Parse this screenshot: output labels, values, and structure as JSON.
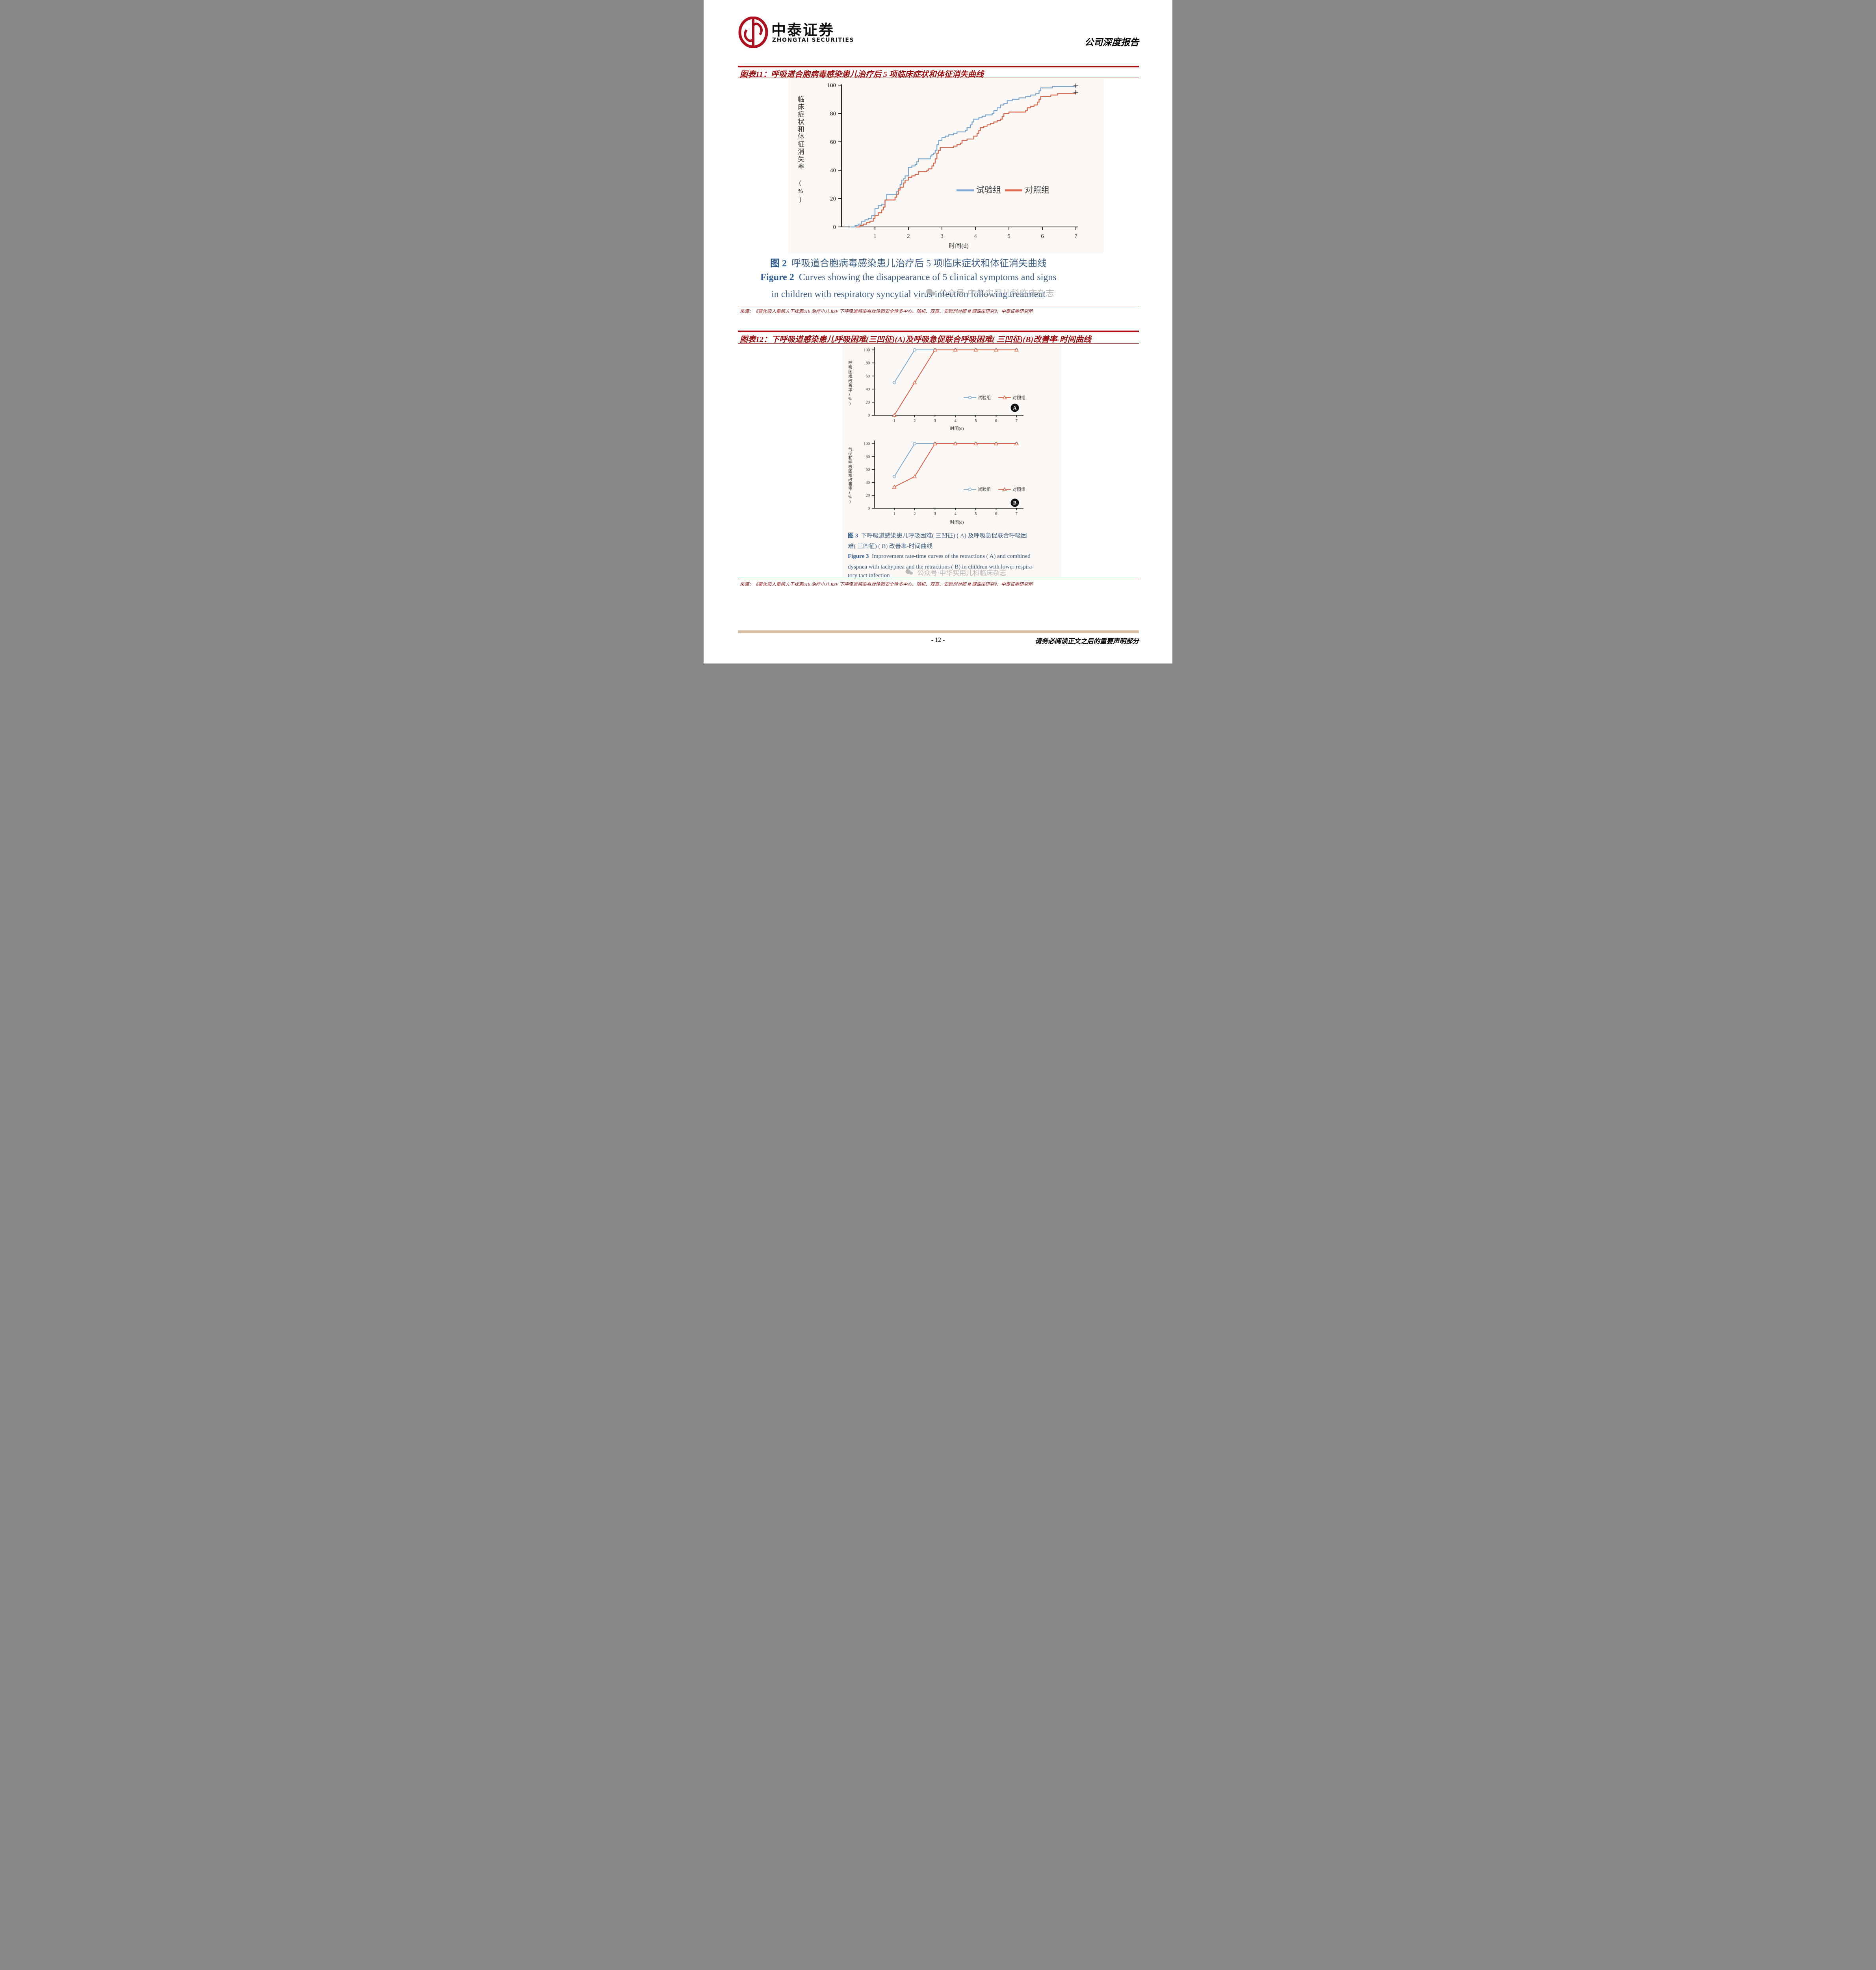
{
  "header": {
    "brand_cn": "中泰证券",
    "brand_en": "ZHONGTAI SECURITIES",
    "report_type": "公司深度报告"
  },
  "figure11": {
    "title": "图表11：呼吸道合胞病毒感染患儿治疗后 5 项临床症状和体征消失曲线",
    "caption_cn_label": "图 2",
    "caption_cn_text": "呼吸道合胞病毒感染患儿治疗后 5 项临床症状和体征消失曲线",
    "caption_en_label": "Figure 2",
    "caption_en_text": "Curves showing the disappearance of 5 clinical symptoms and signs",
    "caption_en_line2": "in children with respiratory syncytial virus infection following treatment",
    "source": "来源：《雾化吸入重组人干扰素α1b 治疗小儿 RSV 下呼吸道感染有效性和安全性多中心、随机、双盲、安慰剂对照 Ⅲ 期临床研究》，中泰证券研究所"
  },
  "figure12": {
    "title": "图表12：下呼吸道感染患儿呼吸困难(三凹征)(A)及呼吸急促联合呼吸困难( 三凹征)(B)改善率-时间曲线",
    "caption_cn_label": "图 3",
    "caption_cn_text": "下呼吸道感染患儿呼吸困难( 三凹征) ( A) 及呼吸急促联合呼吸困",
    "caption_cn_line2": "难( 三凹征) ( B) 改善率-时间曲线",
    "caption_en_label": "Figure 3",
    "caption_en_text": "Improvement rate-time curves of the retractions ( A) and combined",
    "caption_en_line2": "dyspnea with tachypnea and the retractions ( B) in children with lower respira-",
    "caption_en_line3": "tory tact infection",
    "source": "来源：《雾化吸入重组人干扰素α1b 治疗小儿 RSV 下呼吸道感染有效性和安全性多中心、随机、双盲、安慰剂对照 Ⅲ 期临床研究》，中泰证券研究所"
  },
  "watermark": {
    "text": "公众号·中华实用儿科临床杂志"
  },
  "footer": {
    "page_number": "- 12 -",
    "disclaimer": "请务必阅读正文之后的重要声明部分"
  },
  "chart_data": [
    {
      "id": "figure2",
      "type": "line",
      "subtype": "step-survival",
      "xlabel": "时间(d)",
      "ylabel": "临床症状和体征消失率 (%)",
      "xlim": [
        0,
        7
      ],
      "ylim": [
        0,
        100
      ],
      "xticks": [
        1,
        2,
        3,
        4,
        5,
        6,
        7
      ],
      "yticks": [
        0,
        20,
        40,
        60,
        80,
        100
      ],
      "grid": false,
      "legend_position": "inside-right-lower",
      "censor_marker": "+",
      "series": [
        {
          "name": "试验组",
          "color": "#7fa9cf",
          "points": [
            [
              0.25,
              0
            ],
            [
              0.4,
              1
            ],
            [
              0.5,
              2
            ],
            [
              0.6,
              4
            ],
            [
              0.7,
              5
            ],
            [
              0.8,
              6
            ],
            [
              0.9,
              8
            ],
            [
              1.0,
              13
            ],
            [
              1.1,
              15
            ],
            [
              1.2,
              16
            ],
            [
              1.3,
              19
            ],
            [
              1.35,
              23
            ],
            [
              1.55,
              23
            ],
            [
              1.65,
              25
            ],
            [
              1.7,
              27
            ],
            [
              1.75,
              30
            ],
            [
              1.8,
              33
            ],
            [
              1.85,
              34
            ],
            [
              1.9,
              36
            ],
            [
              2.0,
              42
            ],
            [
              2.1,
              43
            ],
            [
              2.2,
              44
            ],
            [
              2.25,
              46
            ],
            [
              2.3,
              48
            ],
            [
              2.55,
              48
            ],
            [
              2.65,
              50
            ],
            [
              2.7,
              51
            ],
            [
              2.75,
              52
            ],
            [
              2.8,
              54
            ],
            [
              2.85,
              58
            ],
            [
              2.9,
              61
            ],
            [
              3.0,
              63
            ],
            [
              3.1,
              64
            ],
            [
              3.2,
              65
            ],
            [
              3.35,
              66
            ],
            [
              3.45,
              67
            ],
            [
              3.6,
              67
            ],
            [
              3.7,
              68
            ],
            [
              3.75,
              70
            ],
            [
              3.85,
              72
            ],
            [
              3.9,
              74
            ],
            [
              3.95,
              76
            ],
            [
              4.1,
              77
            ],
            [
              4.2,
              78
            ],
            [
              4.3,
              79
            ],
            [
              4.5,
              80
            ],
            [
              4.55,
              82
            ],
            [
              4.65,
              84
            ],
            [
              4.75,
              86
            ],
            [
              4.85,
              87
            ],
            [
              4.95,
              89
            ],
            [
              5.1,
              90
            ],
            [
              5.3,
              91
            ],
            [
              5.5,
              92
            ],
            [
              5.65,
              93
            ],
            [
              5.8,
              94
            ],
            [
              5.9,
              96
            ],
            [
              5.95,
              98
            ],
            [
              6.2,
              98
            ],
            [
              6.3,
              99
            ],
            [
              6.85,
              99
            ],
            [
              7.0,
              99.5
            ]
          ]
        },
        {
          "name": "对照组",
          "color": "#d96a4e",
          "points": [
            [
              0.45,
              0
            ],
            [
              0.55,
              1
            ],
            [
              0.65,
              2
            ],
            [
              0.75,
              3
            ],
            [
              0.85,
              4
            ],
            [
              0.95,
              6
            ],
            [
              1.0,
              8
            ],
            [
              1.1,
              10
            ],
            [
              1.2,
              12
            ],
            [
              1.25,
              14
            ],
            [
              1.3,
              19
            ],
            [
              1.5,
              19
            ],
            [
              1.6,
              21
            ],
            [
              1.65,
              23
            ],
            [
              1.7,
              26
            ],
            [
              1.75,
              28
            ],
            [
              1.85,
              31
            ],
            [
              1.9,
              33
            ],
            [
              2.0,
              35
            ],
            [
              2.1,
              36
            ],
            [
              2.2,
              37
            ],
            [
              2.3,
              39
            ],
            [
              2.5,
              39
            ],
            [
              2.55,
              40
            ],
            [
              2.6,
              41
            ],
            [
              2.7,
              43
            ],
            [
              2.75,
              45
            ],
            [
              2.8,
              48
            ],
            [
              2.85,
              52
            ],
            [
              2.9,
              54
            ],
            [
              2.95,
              56
            ],
            [
              3.2,
              56
            ],
            [
              3.35,
              57
            ],
            [
              3.45,
              58
            ],
            [
              3.55,
              59
            ],
            [
              3.6,
              61
            ],
            [
              3.75,
              62
            ],
            [
              3.9,
              62
            ],
            [
              3.95,
              64
            ],
            [
              4.05,
              66
            ],
            [
              4.1,
              68
            ],
            [
              4.15,
              70
            ],
            [
              4.25,
              71
            ],
            [
              4.35,
              72
            ],
            [
              4.45,
              73
            ],
            [
              4.55,
              74
            ],
            [
              4.65,
              75
            ],
            [
              4.75,
              76
            ],
            [
              4.8,
              78
            ],
            [
              4.85,
              80
            ],
            [
              5.0,
              81
            ],
            [
              5.4,
              81
            ],
            [
              5.5,
              82
            ],
            [
              5.55,
              84
            ],
            [
              5.65,
              85
            ],
            [
              5.75,
              86
            ],
            [
              5.85,
              88
            ],
            [
              5.9,
              90
            ],
            [
              5.95,
              92
            ],
            [
              6.15,
              92
            ],
            [
              6.25,
              93
            ],
            [
              6.45,
              94
            ],
            [
              6.7,
              94
            ],
            [
              7.0,
              95
            ]
          ]
        }
      ]
    },
    {
      "id": "figure3A",
      "type": "line",
      "panel_label": "A",
      "xlabel": "时间(d)",
      "ylabel": "呼吸困难改善率(%)",
      "x": [
        1,
        2,
        3,
        4,
        5,
        6,
        7
      ],
      "ylim": [
        0,
        100
      ],
      "yticks": [
        0,
        20,
        40,
        60,
        80,
        100
      ],
      "grid": false,
      "legend_position": "inside-right",
      "series": [
        {
          "name": "试验组",
          "color": "#7fa9cf",
          "marker": "circle",
          "values": [
            50,
            100,
            100,
            100,
            100,
            100,
            100
          ]
        },
        {
          "name": "对照组",
          "color": "#d85f41",
          "marker": "triangle",
          "values": [
            0,
            50,
            100,
            100,
            100,
            100,
            100
          ]
        }
      ]
    },
    {
      "id": "figure3B",
      "type": "line",
      "panel_label": "B",
      "xlabel": "时间(d)",
      "ylabel": "气促和呼吸困难改善率(%)",
      "x": [
        1,
        2,
        3,
        4,
        5,
        6,
        7
      ],
      "ylim": [
        0,
        100
      ],
      "yticks": [
        0,
        20,
        40,
        60,
        80,
        100
      ],
      "grid": false,
      "legend_position": "inside-right",
      "series": [
        {
          "name": "试验组",
          "color": "#7fa9cf",
          "marker": "circle",
          "values": [
            49,
            100,
            100,
            100,
            100,
            100,
            100
          ]
        },
        {
          "name": "对照组",
          "color": "#d85f41",
          "marker": "triangle",
          "values": [
            33,
            49,
            100,
            100,
            100,
            100,
            100
          ]
        }
      ]
    }
  ]
}
